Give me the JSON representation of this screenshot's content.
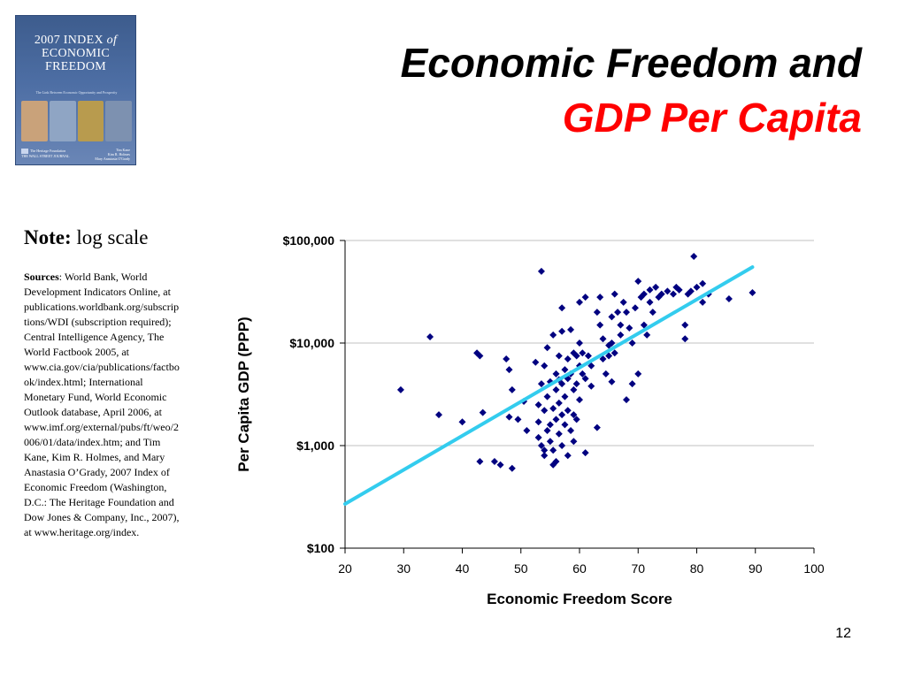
{
  "slide": {
    "title_line1": "Economic Freedom and",
    "title_line2": "GDP Per Capita",
    "slide_number": "12"
  },
  "cover": {
    "title_line1": "2007 INDEX",
    "title_of": "of",
    "title_line2": "ECONOMIC",
    "title_line3": "FREEDOM",
    "subtitle": "The Link Between Economic Opportunity and Prosperity",
    "authors": [
      "Tim Kane",
      "Kim R. Holmes",
      "Mary Anastasia O'Grady"
    ],
    "publishers": [
      "The Heritage Foundation",
      "THE WALL STREET JOURNAL"
    ],
    "colors": {
      "background": "#4d6ea4",
      "text": "#ffffff"
    }
  },
  "note": {
    "label": "Note:",
    "text": " log scale"
  },
  "sources": {
    "label": "Sources",
    "text": ": World Bank, World Development Indicators Online, at publications.worldbank.org/subscriptions/WDI (subscription required); Central Intelligence Agency, The World Factbook 2005, at www.cia.gov/cia/publications/factbook/index.html; International Monetary Fund, World Economic Outlook database, April 2006, at www.imf.org/external/pubs/ft/weo/2006/01/data/index.htm; and Tim Kane, Kim R. Holmes, and Mary Anastasia O’Grady, 2007 Index of Economic Freedom (Washington, D.C.: The Heritage Foundation and Dow Jones & Company, Inc., 2007), at www.heritage.org/index."
  },
  "chart_data": {
    "type": "scatter",
    "xlabel": "Economic Freedom Score",
    "ylabel": "Per Capita GDP (PPP)",
    "xlim": [
      20,
      100
    ],
    "ylim": [
      100,
      100000
    ],
    "y_scale": "log",
    "grid": true,
    "x_ticks": [
      "20",
      "30",
      "40",
      "50",
      "60",
      "70",
      "80",
      "90",
      "100"
    ],
    "y_ticks": [
      {
        "value": 100,
        "label": "$100"
      },
      {
        "value": 1000,
        "label": "$1,000"
      },
      {
        "value": 10000,
        "label": "$10,000"
      },
      {
        "value": 100000,
        "label": "$100,000"
      }
    ],
    "colors": {
      "points": "#000080",
      "trend": "#33ccee",
      "grid": "#c0c0c0"
    },
    "trendline": {
      "x": [
        20,
        89.5
      ],
      "y": [
        270,
        55000
      ]
    },
    "points": [
      [
        29.5,
        3500
      ],
      [
        34.5,
        11500
      ],
      [
        36,
        2000
      ],
      [
        40,
        1700
      ],
      [
        42.5,
        8000
      ],
      [
        43,
        7500
      ],
      [
        43,
        700
      ],
      [
        43.5,
        2100
      ],
      [
        45.5,
        700
      ],
      [
        46.5,
        650
      ],
      [
        47.5,
        7000
      ],
      [
        48,
        5500
      ],
      [
        48.5,
        3500
      ],
      [
        48,
        1900
      ],
      [
        48.5,
        600
      ],
      [
        49.5,
        1800
      ],
      [
        50.5,
        2700
      ],
      [
        51,
        1400
      ],
      [
        52.5,
        6500
      ],
      [
        53,
        2500
      ],
      [
        53,
        1700
      ],
      [
        53,
        1200
      ],
      [
        53.5,
        4000
      ],
      [
        53.5,
        1000
      ],
      [
        53.5,
        50000
      ],
      [
        54,
        6000
      ],
      [
        54,
        2200
      ],
      [
        54,
        900
      ],
      [
        54,
        800
      ],
      [
        54.5,
        9000
      ],
      [
        54.5,
        3000
      ],
      [
        54.5,
        1400
      ],
      [
        55,
        4200
      ],
      [
        55,
        1600
      ],
      [
        55,
        1100
      ],
      [
        55.5,
        12000
      ],
      [
        55.5,
        2300
      ],
      [
        55.5,
        900
      ],
      [
        55.5,
        650
      ],
      [
        56,
        5000
      ],
      [
        56,
        3500
      ],
      [
        56,
        1800
      ],
      [
        56,
        700
      ],
      [
        56.5,
        7500
      ],
      [
        56.5,
        4400
      ],
      [
        56.5,
        2600
      ],
      [
        56.5,
        1300
      ],
      [
        57,
        13000
      ],
      [
        57,
        22000
      ],
      [
        57,
        4000
      ],
      [
        57,
        2000
      ],
      [
        57,
        1000
      ],
      [
        57.5,
        5500
      ],
      [
        57.5,
        3000
      ],
      [
        57.5,
        1600
      ],
      [
        58,
        7000
      ],
      [
        58,
        4500
      ],
      [
        58,
        2200
      ],
      [
        58,
        800
      ],
      [
        58.5,
        13500
      ],
      [
        58.5,
        5000
      ],
      [
        58.5,
        1400
      ],
      [
        59,
        8000
      ],
      [
        59,
        3500
      ],
      [
        59,
        2000
      ],
      [
        59,
        1100
      ],
      [
        59.5,
        7500
      ],
      [
        59.5,
        4000
      ],
      [
        59.5,
        1800
      ],
      [
        60,
        10000
      ],
      [
        60,
        6000
      ],
      [
        60,
        25000
      ],
      [
        60,
        2800
      ],
      [
        60.5,
        8000
      ],
      [
        60.5,
        5000
      ],
      [
        61,
        28000
      ],
      [
        61,
        4500
      ],
      [
        61,
        850
      ],
      [
        61.5,
        7500
      ],
      [
        62,
        6000
      ],
      [
        62,
        3800
      ],
      [
        63,
        20000
      ],
      [
        63,
        1500
      ],
      [
        63.5,
        28000
      ],
      [
        63.5,
        15000
      ],
      [
        64,
        11000
      ],
      [
        64,
        7000
      ],
      [
        64.5,
        5000
      ],
      [
        65,
        9500
      ],
      [
        65,
        7500
      ],
      [
        65.5,
        18000
      ],
      [
        65.5,
        10000
      ],
      [
        65.5,
        4200
      ],
      [
        66,
        30000
      ],
      [
        66,
        8000
      ],
      [
        66.5,
        20000
      ],
      [
        67,
        15000
      ],
      [
        67,
        12000
      ],
      [
        67.5,
        25000
      ],
      [
        68,
        20000
      ],
      [
        68,
        2800
      ],
      [
        68.5,
        14000
      ],
      [
        69,
        10000
      ],
      [
        69,
        4000
      ],
      [
        69.5,
        22000
      ],
      [
        70,
        40000
      ],
      [
        70,
        5000
      ],
      [
        70.5,
        28000
      ],
      [
        71,
        30000
      ],
      [
        71,
        15000
      ],
      [
        71.5,
        12000
      ],
      [
        72,
        33000
      ],
      [
        72,
        25000
      ],
      [
        72.5,
        20000
      ],
      [
        73,
        35000
      ],
      [
        73.5,
        28000
      ],
      [
        74,
        30000
      ],
      [
        75,
        32000
      ],
      [
        76,
        30000
      ],
      [
        76.5,
        35000
      ],
      [
        77,
        33000
      ],
      [
        78,
        15000
      ],
      [
        78,
        11000
      ],
      [
        78.5,
        30000
      ],
      [
        79,
        32000
      ],
      [
        79.5,
        70000
      ],
      [
        80,
        35000
      ],
      [
        81,
        25000
      ],
      [
        81,
        38000
      ],
      [
        82,
        30000
      ],
      [
        85.5,
        27000
      ],
      [
        89.5,
        31000
      ]
    ]
  }
}
